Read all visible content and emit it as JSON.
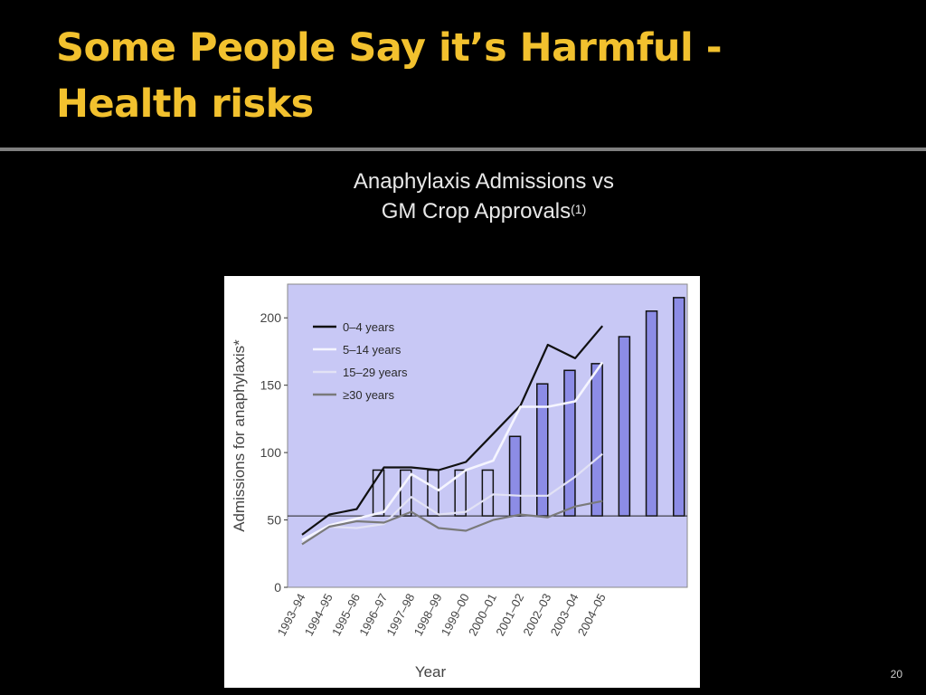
{
  "slide": {
    "title_line1": "Some People Say it’s Harmful -",
    "title_line2": "Health risks",
    "page_number": "20"
  },
  "colors": {
    "background": "#000000",
    "title": "#f2c12e",
    "plot_background": "#c8c8f5",
    "bar_fill": "#8c8ce6",
    "line_0_4": "#111111",
    "line_5_14": "#f5f5ff",
    "line_15_29": "#e2e2f5",
    "line_30_plus": "#7a7a7a"
  },
  "chart_data": {
    "type": "line",
    "title": "Anaphylaxis Admissions vs",
    "subtitle": "GM Crop Approvals",
    "subtitle_superscript": "(1)",
    "xlabel": "Year",
    "ylabel": "Admissions for anaphylaxis*",
    "ylim": [
      0,
      225
    ],
    "yticks": [
      0,
      50,
      100,
      150,
      200
    ],
    "grid": false,
    "legend_position": "top-left",
    "categories": [
      "1993–94",
      "1994–95",
      "1995–96",
      "1996–97",
      "1997–98",
      "1998–99",
      "1999–00",
      "2000–01",
      "2001–02",
      "2002–03",
      "2003–04",
      "2004–05"
    ],
    "series": [
      {
        "name": "0–4 years",
        "color": "#111111",
        "values": [
          39,
          54,
          58,
          89,
          89,
          87,
          93,
          114,
          135,
          180,
          170,
          194
        ]
      },
      {
        "name": "5–14 years",
        "color": "#f5f5ff",
        "values": [
          35,
          46,
          51,
          56,
          84,
          72,
          87,
          94,
          134,
          134,
          138,
          167
        ]
      },
      {
        "name": "15–29 years",
        "color": "#e2e2f5",
        "values": [
          33,
          45,
          44,
          47,
          67,
          54,
          56,
          69,
          68,
          68,
          82,
          99
        ]
      },
      {
        "name": "≥30 years",
        "color": "#7a7a7a",
        "values": [
          32,
          45,
          49,
          48,
          56,
          44,
          42,
          50,
          54,
          52,
          60,
          64
        ]
      }
    ],
    "bars": {
      "baseline": 53,
      "note": "GM crop approvals overlay",
      "values": [
        87,
        87,
        87,
        87,
        87,
        112,
        151,
        161,
        166,
        186,
        205,
        215
      ],
      "filled": [
        false,
        false,
        false,
        false,
        false,
        true,
        true,
        true,
        true,
        true,
        true,
        true
      ]
    }
  }
}
